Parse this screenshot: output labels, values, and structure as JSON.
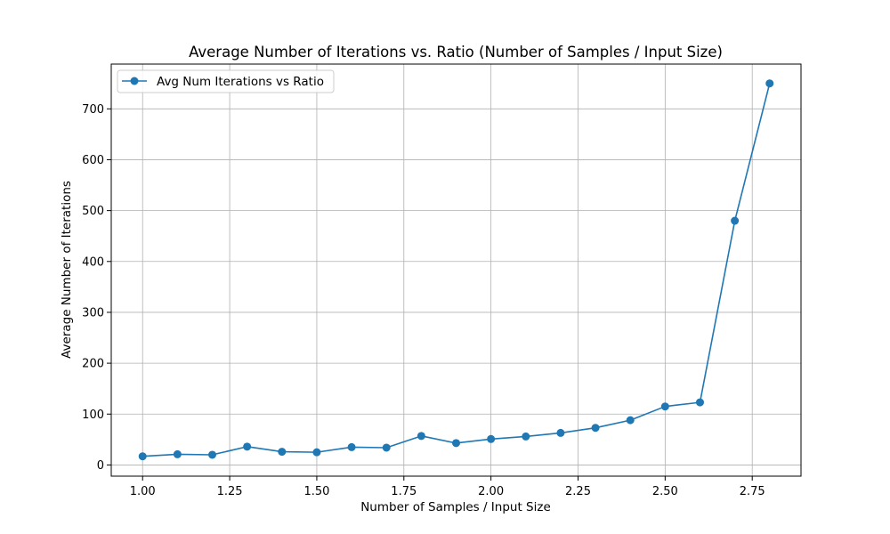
{
  "chart_data": {
    "type": "line",
    "title": "Average Number of Iterations vs. Ratio (Number of Samples / Input Size)",
    "xlabel": "Number of Samples / Input Size",
    "ylabel": "Average Number of Iterations",
    "xlim": [
      0.91,
      2.89
    ],
    "ylim": [
      -22,
      788
    ],
    "xticks": [
      1.0,
      1.25,
      1.5,
      1.75,
      2.0,
      2.25,
      2.5,
      2.75
    ],
    "xtick_labels": [
      "1.00",
      "1.25",
      "1.50",
      "1.75",
      "2.00",
      "2.25",
      "2.50",
      "2.75"
    ],
    "yticks": [
      0,
      100,
      200,
      300,
      400,
      500,
      600,
      700
    ],
    "ytick_labels": [
      "0",
      "100",
      "200",
      "300",
      "400",
      "500",
      "600",
      "700"
    ],
    "grid": true,
    "legend_position": "top-left",
    "series": [
      {
        "name": "Avg Num Iterations vs Ratio",
        "color": "#1f77b4",
        "marker": "circle",
        "x": [
          1.0,
          1.1,
          1.2,
          1.3,
          1.4,
          1.5,
          1.6,
          1.7,
          1.8,
          1.9,
          2.0,
          2.1,
          2.2,
          2.3,
          2.4,
          2.5,
          2.6,
          2.7,
          2.8
        ],
        "y": [
          17,
          21,
          20,
          36,
          26,
          25,
          35,
          34,
          57,
          43,
          51,
          56,
          63,
          73,
          88,
          115,
          123,
          480,
          750
        ]
      }
    ]
  }
}
